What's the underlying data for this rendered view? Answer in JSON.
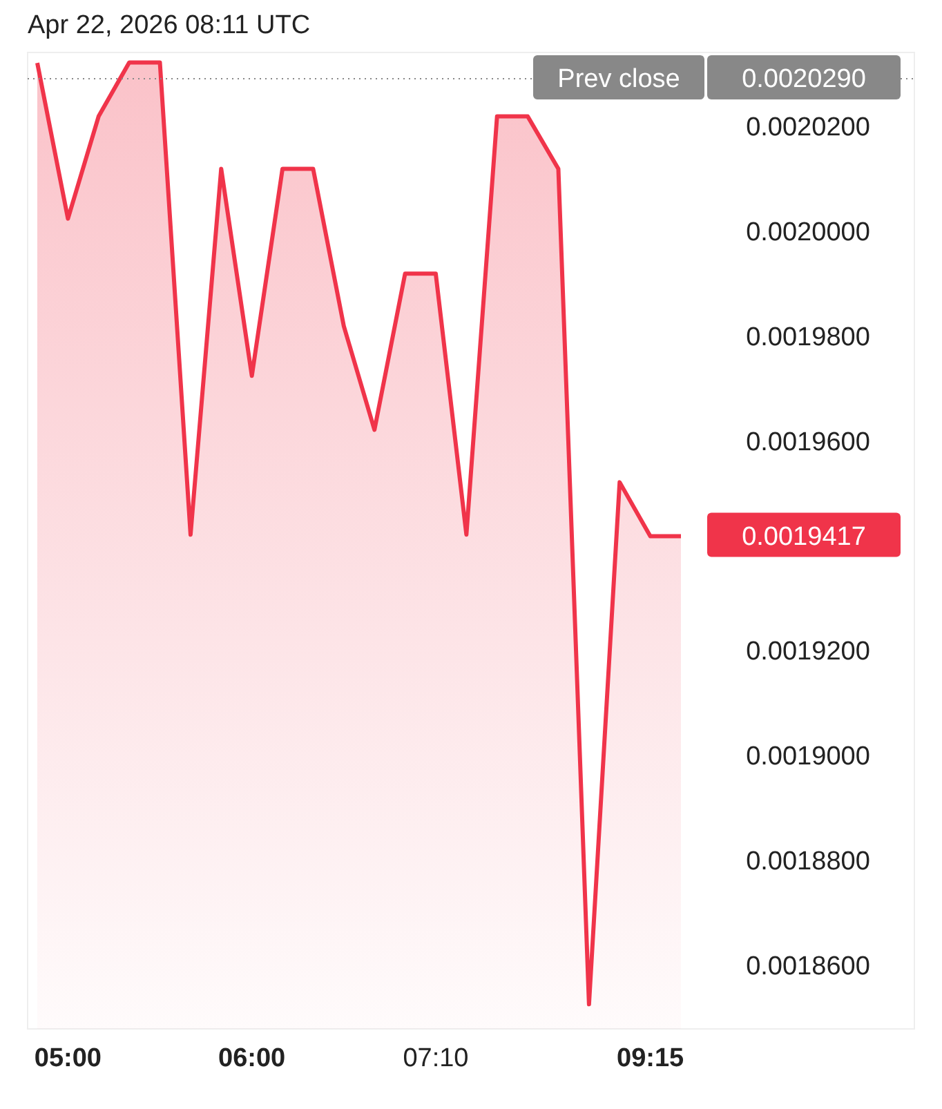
{
  "chart_data": {
    "type": "area",
    "title": "Apr 22, 2026 08:11 UTC",
    "categories": [
      null,
      "05:00",
      null,
      null,
      null,
      null,
      null,
      "06:00",
      null,
      null,
      null,
      null,
      null,
      "07:10",
      null,
      null,
      null,
      null,
      null,
      null,
      "09:15",
      null
    ],
    "series": [
      {
        "color": "#f0344a",
        "values": [
          0.002032,
          0.0020023,
          0.0020218,
          0.0020321,
          0.0020321,
          0.001942,
          0.0020118,
          0.0019723,
          0.0020118,
          0.0020118,
          0.0019818,
          0.001962,
          0.0019918,
          0.0019918,
          0.001942,
          0.0020218,
          0.0020218,
          0.0020118,
          0.0018524,
          0.001952,
          0.0019417,
          0.0019417
        ]
      }
    ],
    "ylim": [
      0.0018477,
      0.002034
    ],
    "yticks": [
      {
        "value": 0.00186,
        "label": "0.0018600"
      },
      {
        "value": 0.00188,
        "label": "0.0018800"
      },
      {
        "value": 0.0019,
        "label": "0.0019000"
      },
      {
        "value": 0.00192,
        "label": "0.0019200"
      },
      {
        "value": 0.00196,
        "label": "0.0019600"
      },
      {
        "value": 0.00198,
        "label": "0.0019800"
      },
      {
        "value": 0.002,
        "label": "0.0020000"
      },
      {
        "value": 0.00202,
        "label": "0.0020200"
      }
    ],
    "ref_lines": [
      {
        "axis": "y",
        "value": 0.002029,
        "label": "Prev close",
        "color": "#888888",
        "line_style": "dotted"
      }
    ],
    "annotations": [
      "0.0020290",
      "0.0019417"
    ],
    "grid": false
  }
}
